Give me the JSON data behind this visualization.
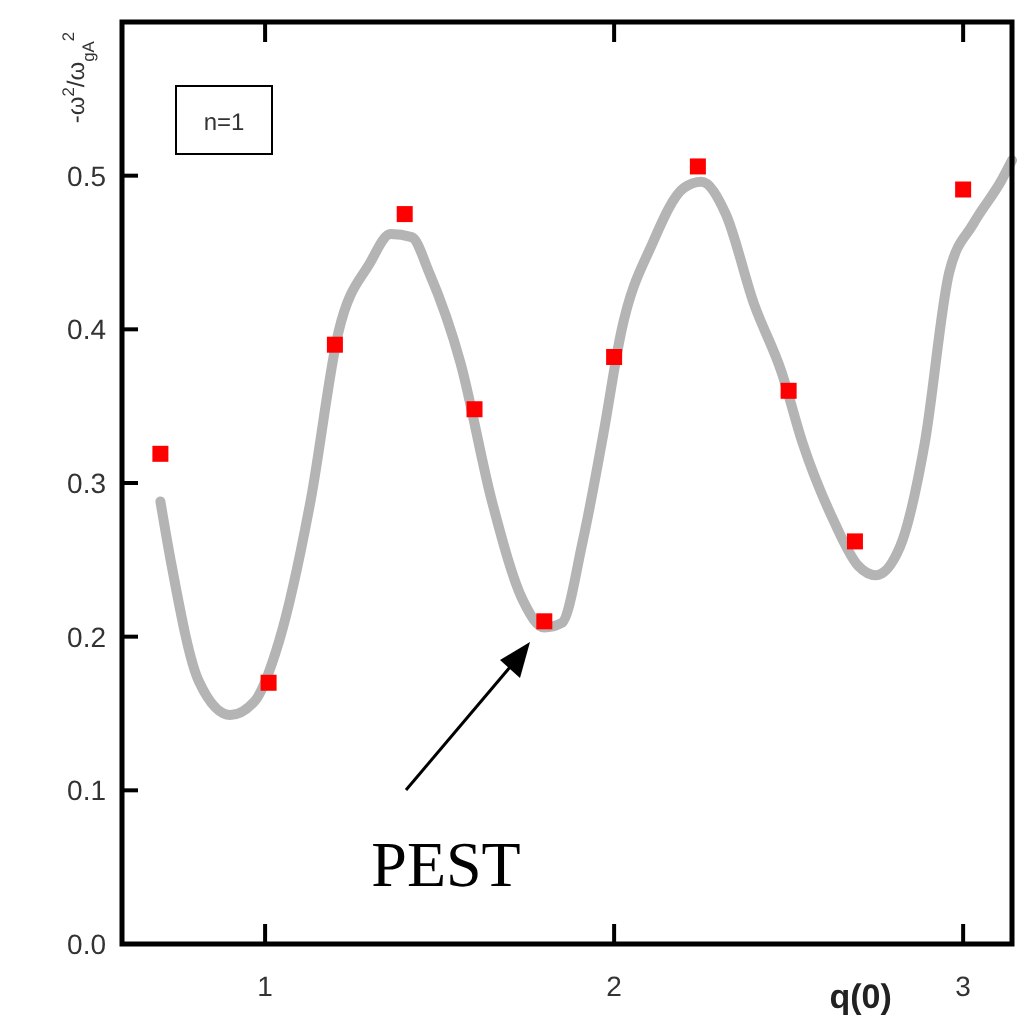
{
  "chart_data": {
    "type": "scatter",
    "xlabel": "q(0)",
    "ylabel": "-ω$^{2}$/ω$_{gA}$$^{2}$",
    "xlim": [
      0.59,
      3.14
    ],
    "ylim": [
      0,
      0.6
    ],
    "xticks": [
      1,
      2,
      3
    ],
    "yticks": [
      {
        "value": 0,
        "label": "0.0"
      },
      0.1,
      0.2,
      0.3,
      0.4,
      0.5
    ],
    "grid": false,
    "series": [
      {
        "type": "line",
        "color": "#b4b4b4",
        "marker": "none",
        "line_style": "solid",
        "x": [
          0.7,
          0.73,
          0.81,
          0.9,
          0.97,
          1.04,
          1.13,
          1.21,
          1.3,
          1.36,
          1.42,
          1.47,
          1.56,
          1.65,
          1.74,
          1.8,
          1.85,
          1.91,
          1.97,
          2.02,
          2.11,
          2.2,
          2.25,
          2.32,
          2.4,
          2.48,
          2.54,
          2.63,
          2.7,
          2.75,
          2.82,
          2.89,
          2.96,
          3.03,
          3.11,
          3.14
        ],
        "values": [
          0.288,
          0.249,
          0.171,
          0.149,
          0.158,
          0.197,
          0.288,
          0.398,
          0.443,
          0.462,
          0.46,
          0.437,
          0.378,
          0.288,
          0.223,
          0.206,
          0.209,
          0.262,
          0.333,
          0.398,
          0.456,
          0.492,
          0.496,
          0.475,
          0.417,
          0.372,
          0.326,
          0.275,
          0.246,
          0.24,
          0.259,
          0.326,
          0.437,
          0.469,
          0.497,
          0.51
        ]
      },
      {
        "color": "#ff0000",
        "marker": "square",
        "x": [
          0.7,
          1.01,
          1.2,
          1.4,
          1.6,
          1.8,
          2.0,
          2.24,
          2.5,
          2.69,
          3.0
        ],
        "values": [
          0.319,
          0.17,
          0.39,
          0.475,
          0.348,
          0.21,
          0.382,
          0.506,
          0.36,
          0.262,
          0.491
        ]
      }
    ],
    "annotations": [
      "n=1",
      "PEST"
    ]
  }
}
